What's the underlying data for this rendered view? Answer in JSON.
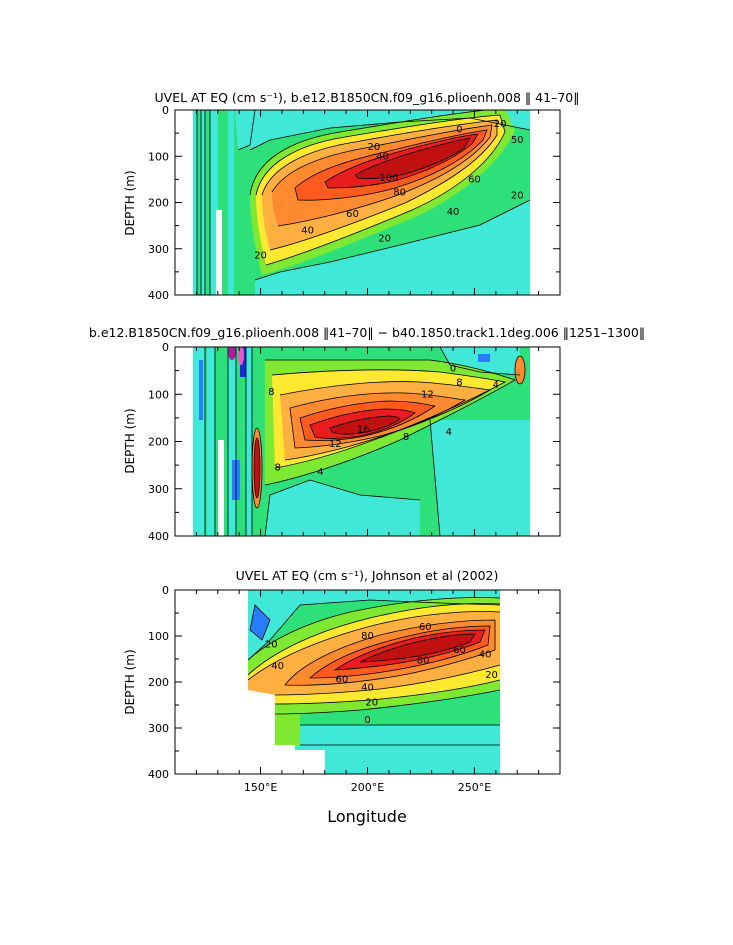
{
  "chart_data": [
    {
      "type": "contour",
      "title": "UVEL AT EQ (cm s⁻¹), b.e12.B1850CN.f09_g16.plioenh.008 ‖ 41–70‖",
      "ylabel": "DEPTH (m)",
      "xlabel": "",
      "ylim": [
        400,
        0
      ],
      "xlim": [
        110,
        290
      ],
      "y_ticks": [
        "0",
        "100",
        "200",
        "300",
        "400"
      ],
      "x_ticks": [],
      "contour_labels": [
        {
          "text": "0",
          "lon": 243,
          "depth": 42
        },
        {
          "text": "20",
          "lon": 203,
          "depth": 80
        },
        {
          "text": "20",
          "lon": 262,
          "depth": 30
        },
        {
          "text": "40",
          "lon": 207,
          "depth": 100
        },
        {
          "text": "50",
          "lon": 270,
          "depth": 65
        },
        {
          "text": "60",
          "lon": 250,
          "depth": 150
        },
        {
          "text": "80",
          "lon": 215,
          "depth": 178
        },
        {
          "text": "100",
          "lon": 210,
          "depth": 147
        },
        {
          "text": "60",
          "lon": 193,
          "depth": 225
        },
        {
          "text": "40",
          "lon": 172,
          "depth": 261
        },
        {
          "text": "40",
          "lon": 240,
          "depth": 220
        },
        {
          "text": "20",
          "lon": 208,
          "depth": 278
        },
        {
          "text": "20",
          "lon": 270,
          "depth": 185
        },
        {
          "text": "20",
          "lon": 150,
          "depth": 315
        }
      ]
    },
    {
      "type": "contour",
      "title": "b.e12.B1850CN.f09_g16.plioenh.008 ‖41–70‖ − b40.1850.track1.1deg.006 ‖1251–1300‖",
      "ylabel": "DEPTH (m)",
      "xlabel": "",
      "ylim": [
        400,
        0
      ],
      "xlim": [
        110,
        290
      ],
      "y_ticks": [
        "0",
        "100",
        "200",
        "300",
        "400"
      ],
      "x_ticks": [],
      "contour_labels": [
        {
          "text": "0",
          "lon": 240,
          "depth": 45
        },
        {
          "text": "8",
          "lon": 243,
          "depth": 75
        },
        {
          "text": "4",
          "lon": 260,
          "depth": 80
        },
        {
          "text": "12",
          "lon": 228,
          "depth": 100
        },
        {
          "text": "16",
          "lon": 198,
          "depth": 175
        },
        {
          "text": "12",
          "lon": 185,
          "depth": 205
        },
        {
          "text": "8",
          "lon": 218,
          "depth": 190
        },
        {
          "text": "4",
          "lon": 238,
          "depth": 180
        },
        {
          "text": "4",
          "lon": 178,
          "depth": 265
        },
        {
          "text": "8",
          "lon": 158,
          "depth": 255
        },
        {
          "text": "8",
          "lon": 155,
          "depth": 95
        }
      ]
    },
    {
      "type": "contour",
      "title": "UVEL AT EQ (cm s⁻¹), Johnson et al (2002)",
      "ylabel": "DEPTH (m)",
      "xlabel": "Longitude",
      "ylim": [
        400,
        0
      ],
      "xlim": [
        110,
        290
      ],
      "y_ticks": [
        "0",
        "100",
        "200",
        "300",
        "400"
      ],
      "x_ticks": [
        "150°E",
        "200°E",
        "250°E"
      ],
      "contour_labels": [
        {
          "text": "20",
          "lon": 155,
          "depth": 118
        },
        {
          "text": "40",
          "lon": 158,
          "depth": 165
        },
        {
          "text": "60",
          "lon": 188,
          "depth": 195
        },
        {
          "text": "80",
          "lon": 200,
          "depth": 100
        },
        {
          "text": "80",
          "lon": 226,
          "depth": 153
        },
        {
          "text": "60",
          "lon": 243,
          "depth": 130
        },
        {
          "text": "40",
          "lon": 200,
          "depth": 212
        },
        {
          "text": "20",
          "lon": 202,
          "depth": 245
        },
        {
          "text": "0",
          "lon": 200,
          "depth": 283
        },
        {
          "text": "40",
          "lon": 255,
          "depth": 140
        },
        {
          "text": "20",
          "lon": 258,
          "depth": 185
        },
        {
          "text": "60",
          "lon": 227,
          "depth": 80
        }
      ]
    }
  ]
}
